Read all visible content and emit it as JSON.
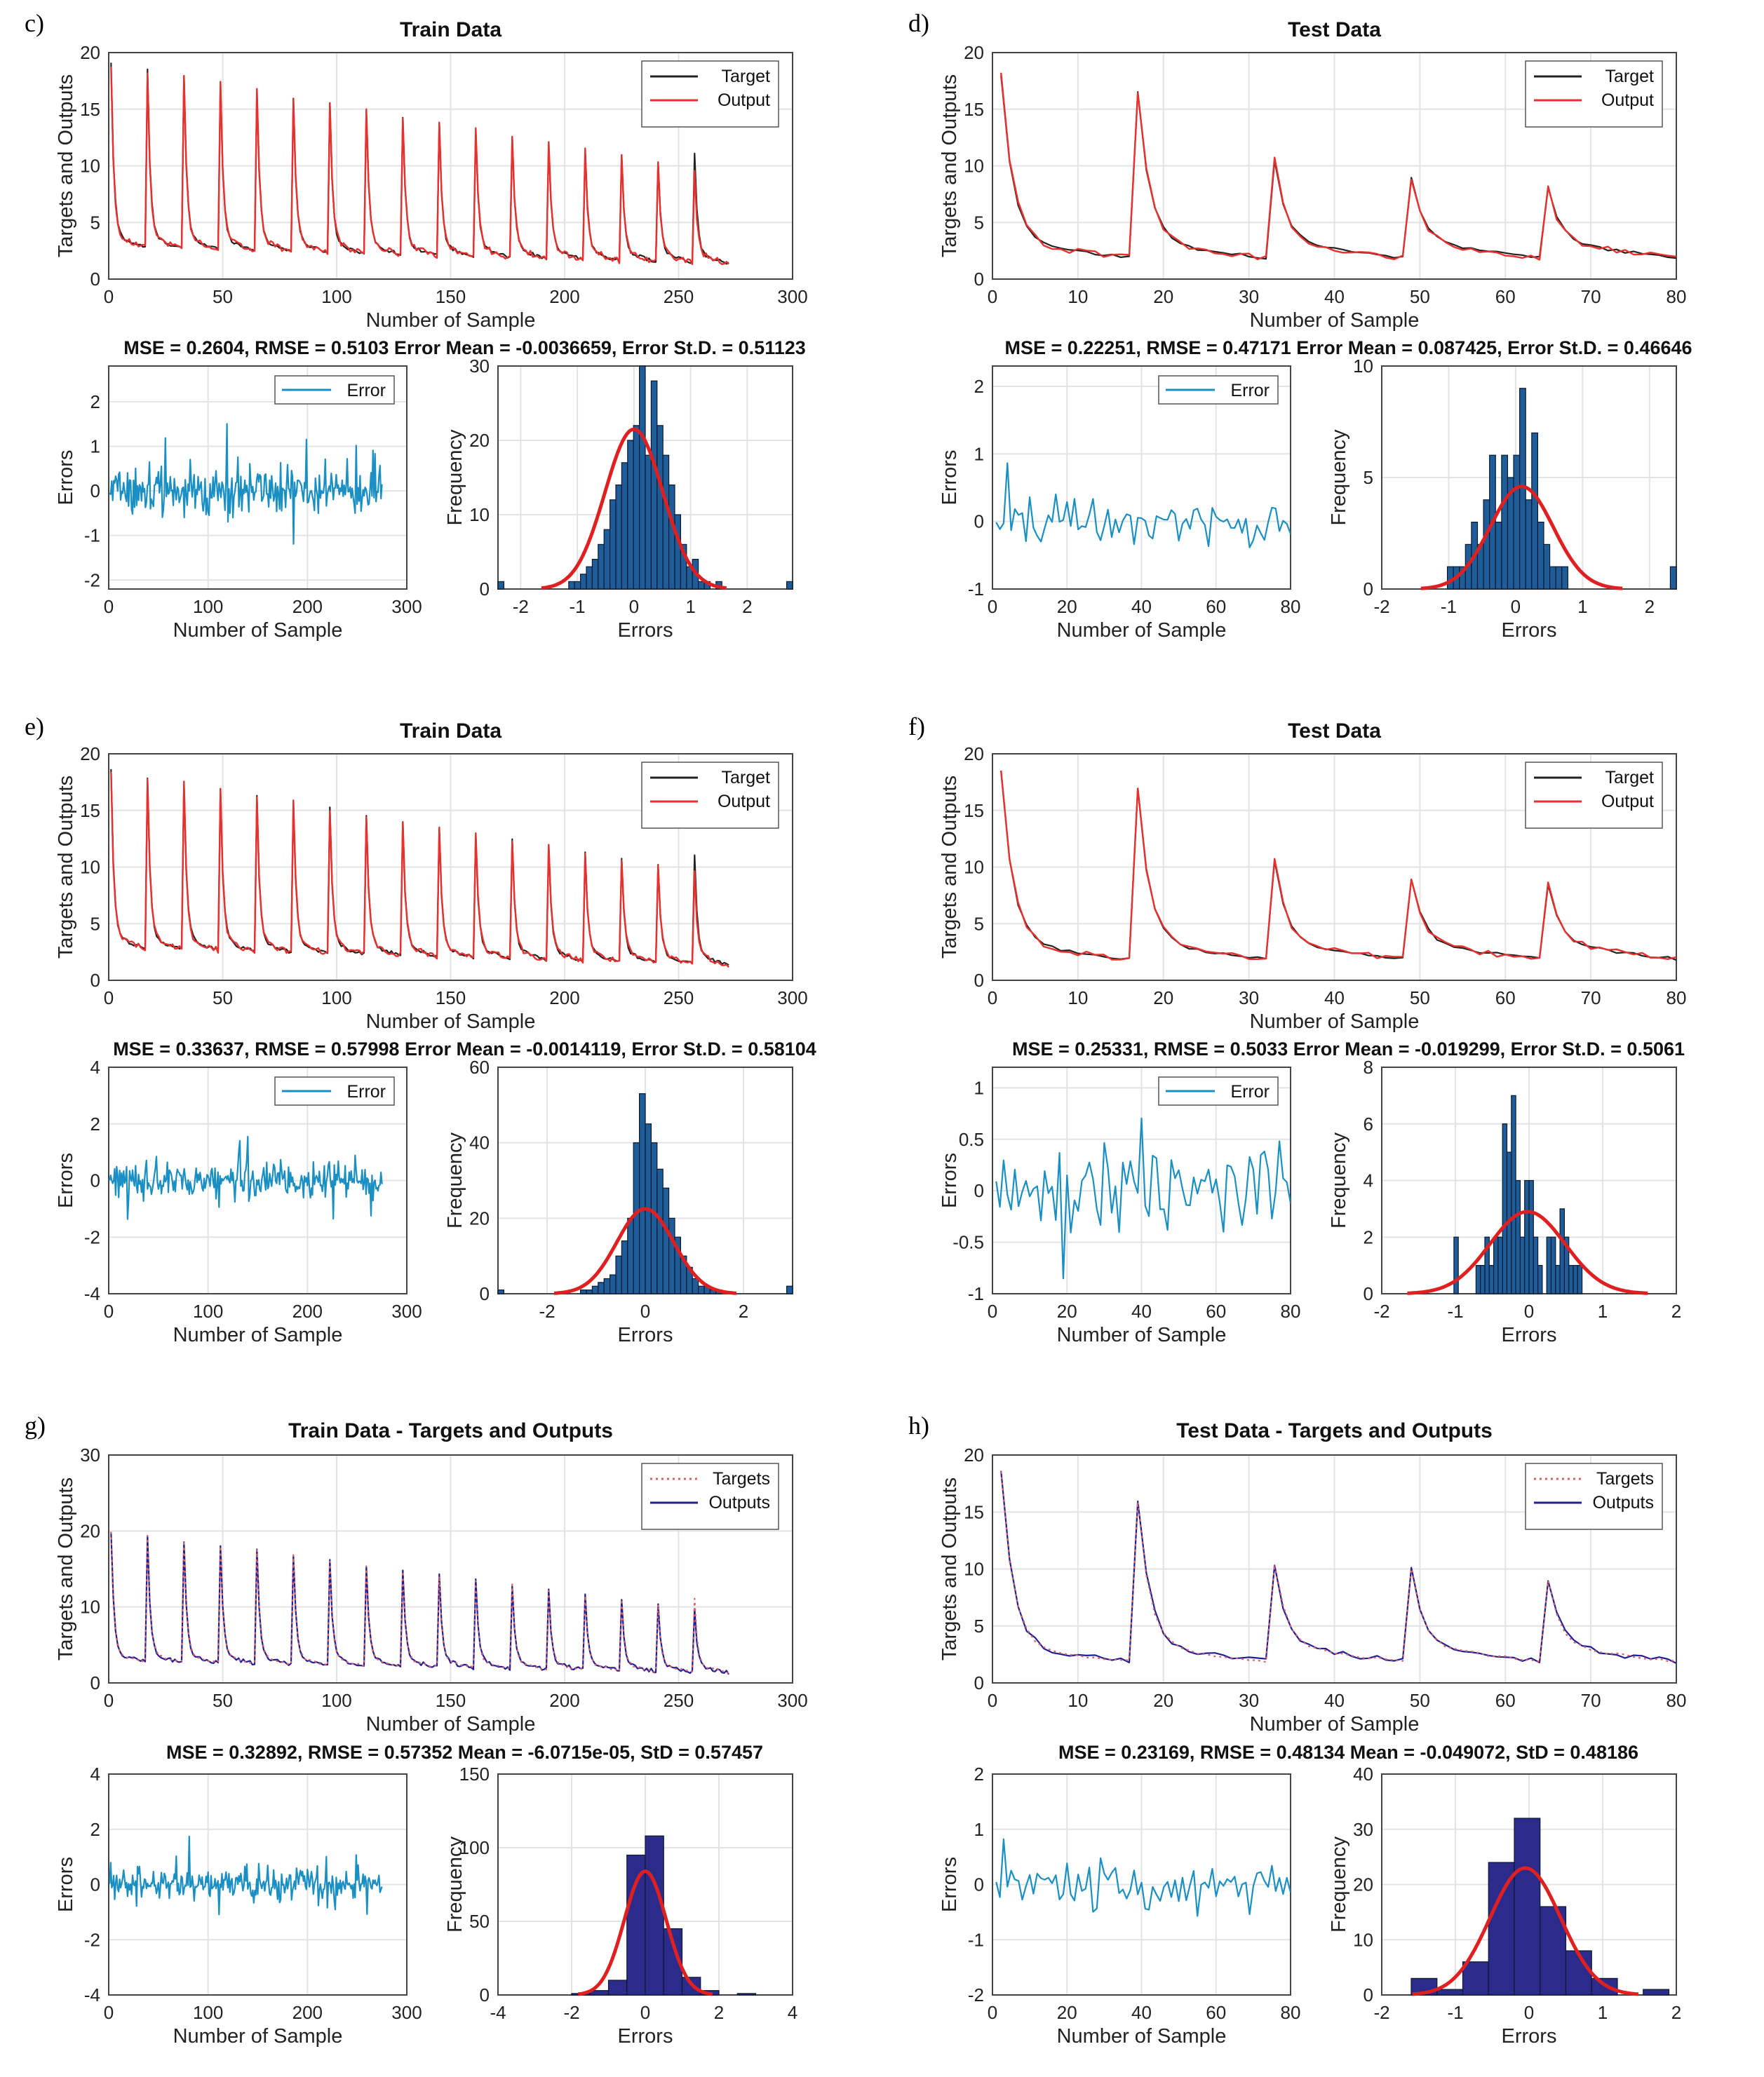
{
  "chart_data": [
    {
      "panel": "c)",
      "title": "Train Data",
      "subtitle": "MSE = 0.2604, RMSE = 0.5103   Error Mean = -0.0036659, Error St.D. = 0.51123",
      "main": {
        "type": "line",
        "xlabel": "Number of Sample",
        "ylabel": "Targets and Outputs",
        "xlim": [
          0,
          300
        ],
        "ylim": [
          0,
          20
        ],
        "xticks": [
          "0",
          "50",
          "100",
          "150",
          "200",
          "250",
          "300"
        ],
        "yticks": [
          "0",
          "5",
          "10",
          "15",
          "20"
        ],
        "legend": [
          "Target",
          "Output"
        ],
        "legend_style": "solid",
        "series_colors": [
          "#222222",
          "#e8312f"
        ],
        "n": 272,
        "period": 16,
        "peak_start": 19,
        "peak_end": 9,
        "base_end": 1.5,
        "spike_at": 257,
        "spike_val": 11
      },
      "errors": {
        "type": "line",
        "xlabel": "Number of Sample",
        "ylabel": "Errors",
        "xlim": [
          0,
          300
        ],
        "ylim": [
          -2.2,
          2.8
        ],
        "xticks": [
          "0",
          "100",
          "200",
          "300"
        ],
        "yticks": [
          "-2",
          "-1",
          "0",
          "1",
          "2"
        ],
        "legend": [
          "Error"
        ],
        "n": 275,
        "amp": 0.5
      },
      "histogram": {
        "type": "bar",
        "xlabel": "Errors",
        "ylabel": "Frequency",
        "xlim": [
          -2.4,
          2.8
        ],
        "ylim": [
          0,
          30
        ],
        "xticks": [
          "-2",
          "-1",
          "0",
          "1",
          "2"
        ],
        "yticks": [
          "0",
          "10",
          "20",
          "30"
        ],
        "bin_edges": [
          -2.4,
          2.8
        ],
        "bins": 50,
        "counts": [
          1,
          0,
          0,
          0,
          0,
          0,
          0,
          0,
          0,
          0,
          0,
          0,
          1,
          1,
          2,
          3,
          4,
          6,
          8,
          12,
          14,
          17,
          20,
          22,
          30,
          18,
          28,
          22,
          18,
          14,
          10,
          6,
          3,
          4,
          1,
          1,
          0,
          1,
          0,
          0,
          0,
          0,
          0,
          0,
          0,
          0,
          0,
          0,
          0,
          1
        ],
        "fit_mean": 0.0,
        "fit_std": 0.51,
        "fit_peak": 21.5,
        "bar_color": "#1f5c9a"
      }
    },
    {
      "panel": "d)",
      "title": "Test Data",
      "subtitle": "MSE = 0.22251, RMSE = 0.47171   Error Mean = 0.087425, Error St.D. = 0.46646",
      "main": {
        "type": "line",
        "xlabel": "Number of Sample",
        "ylabel": "Targets and Outputs",
        "xlim": [
          0,
          80
        ],
        "ylim": [
          0,
          20
        ],
        "xticks": [
          "0",
          "10",
          "20",
          "30",
          "40",
          "50",
          "60",
          "70",
          "80"
        ],
        "yticks": [
          "0",
          "5",
          "10",
          "15",
          "20"
        ],
        "legend": [
          "Target",
          "Output"
        ],
        "legend_style": "solid",
        "series_colors": [
          "#222222",
          "#e8312f"
        ],
        "peaks": [
          [
            1,
            18
          ],
          [
            17,
            16.5
          ],
          [
            33,
            10.5
          ],
          [
            49,
            9
          ],
          [
            65,
            8
          ]
        ],
        "base_end": 0.8,
        "xmax": 80
      },
      "errors": {
        "type": "line",
        "xlabel": "Number of Sample",
        "ylabel": "Errors",
        "xlim": [
          0,
          80
        ],
        "ylim": [
          -1,
          2.3
        ],
        "xticks": [
          "0",
          "20",
          "40",
          "60",
          "80"
        ],
        "yticks": [
          "-1",
          "0",
          "1",
          "2"
        ],
        "legend": [
          "Error"
        ],
        "n": 80,
        "amp": 0.35
      },
      "histogram": {
        "type": "bar",
        "xlabel": "Errors",
        "ylabel": "Frequency",
        "xlim": [
          -2,
          2.4
        ],
        "ylim": [
          0,
          10
        ],
        "xticks": [
          "-2",
          "-1",
          "0",
          "1",
          "2"
        ],
        "yticks": [
          "0",
          "5",
          "10"
        ],
        "bin_edges": [
          -1.2,
          2.4
        ],
        "bins": 40,
        "counts": [
          0,
          0,
          1,
          1,
          1,
          2,
          3,
          2,
          4,
          6,
          3,
          6,
          5,
          6,
          9,
          4,
          7,
          3,
          2,
          1,
          1,
          1,
          0,
          0,
          0,
          0,
          0,
          0,
          0,
          0,
          0,
          0,
          0,
          0,
          0,
          0,
          0,
          0,
          0,
          1
        ],
        "fit_mean": 0.09,
        "fit_std": 0.47,
        "fit_peak": 4.6,
        "bar_color": "#1f5c9a"
      }
    },
    {
      "panel": "e)",
      "title": "Train Data",
      "subtitle": "MSE = 0.33637, RMSE = 0.57998 Error Mean = -0.0014119, Error St.D. = 0.58104",
      "main": {
        "type": "line",
        "xlabel": "Number of Sample",
        "ylabel": "Targets and Outputs",
        "xlim": [
          0,
          300
        ],
        "ylim": [
          0,
          20
        ],
        "xticks": [
          "0",
          "50",
          "100",
          "150",
          "200",
          "250",
          "300"
        ],
        "yticks": [
          "0",
          "5",
          "10",
          "15",
          "20"
        ],
        "legend": [
          "Target",
          "Output"
        ],
        "legend_style": "solid",
        "series_colors": [
          "#222222",
          "#e8312f"
        ],
        "n": 272,
        "period": 16,
        "peak_start": 18.5,
        "peak_end": 9,
        "base_end": 1.5,
        "spike_at": 257,
        "spike_val": 11
      },
      "errors": {
        "type": "line",
        "xlabel": "Number of Sample",
        "ylabel": "Errors",
        "xlim": [
          0,
          300
        ],
        "ylim": [
          -4,
          4
        ],
        "xticks": [
          "0",
          "100",
          "200",
          "300"
        ],
        "yticks": [
          "-4",
          "-2",
          "0",
          "2",
          "4"
        ],
        "legend": [
          "Error"
        ],
        "n": 275,
        "amp": 0.6
      },
      "histogram": {
        "type": "bar",
        "xlabel": "Errors",
        "ylabel": "Frequency",
        "xlim": [
          -3,
          3
        ],
        "ylim": [
          0,
          60
        ],
        "xticks": [
          "-2",
          "0",
          "2"
        ],
        "yticks": [
          "0",
          "20",
          "40",
          "60"
        ],
        "bin_edges": [
          -3,
          3
        ],
        "bins": 50,
        "counts": [
          1,
          0,
          0,
          0,
          0,
          0,
          0,
          0,
          0,
          0,
          0,
          0,
          0,
          0,
          1,
          1,
          2,
          3,
          4,
          5,
          10,
          14,
          20,
          40,
          53,
          45,
          40,
          33,
          28,
          20,
          15,
          10,
          7,
          4,
          2,
          2,
          1,
          1,
          0,
          0,
          0,
          0,
          0,
          0,
          0,
          0,
          0,
          0,
          0,
          2
        ],
        "fit_mean": 0.0,
        "fit_std": 0.58,
        "fit_peak": 22.5,
        "bar_color": "#1f5c9a"
      }
    },
    {
      "panel": "f)",
      "title": "Test Data",
      "subtitle": "MSE = 0.25331, RMSE = 0.5033    Error Mean = -0.019299, Error St.D. = 0.5061",
      "main": {
        "type": "line",
        "xlabel": "Number of Sample",
        "ylabel": "Targets and Outputs",
        "xlim": [
          0,
          80
        ],
        "ylim": [
          0,
          20
        ],
        "xticks": [
          "0",
          "10",
          "20",
          "30",
          "40",
          "50",
          "60",
          "70",
          "80"
        ],
        "yticks": [
          "0",
          "5",
          "10",
          "15",
          "20"
        ],
        "legend": [
          "Target",
          "Output"
        ],
        "legend_style": "solid",
        "series_colors": [
          "#222222",
          "#e8312f"
        ],
        "peaks": [
          [
            1,
            18.5
          ],
          [
            17,
            17
          ],
          [
            33,
            10.5
          ],
          [
            49,
            9
          ],
          [
            65,
            8.5
          ]
        ],
        "base_end": 0.8,
        "xmax": 80
      },
      "errors": {
        "type": "line",
        "xlabel": "Number of Sample",
        "ylabel": "Errors",
        "xlim": [
          0,
          80
        ],
        "ylim": [
          -1,
          1.2
        ],
        "xticks": [
          "0",
          "20",
          "40",
          "60",
          "80"
        ],
        "yticks": [
          "-1",
          "-0.5",
          "0",
          "0.5",
          "1"
        ],
        "legend": [
          "Error"
        ],
        "n": 80,
        "amp": 0.4
      },
      "histogram": {
        "type": "bar",
        "xlabel": "Errors",
        "ylabel": "Frequency",
        "xlim": [
          -2,
          2
        ],
        "ylim": [
          0,
          8
        ],
        "xticks": [
          "-2",
          "-1",
          "0",
          "1",
          "2"
        ],
        "yticks": [
          "0",
          "2",
          "4",
          "6",
          "8"
        ],
        "bin_edges": [
          -1.2,
          1.2
        ],
        "bins": 40,
        "counts": [
          0,
          0,
          0,
          2,
          0,
          0,
          0,
          0,
          1,
          1,
          2,
          1,
          2,
          2,
          6,
          5,
          7,
          4,
          2,
          4,
          4,
          2,
          1,
          0,
          2,
          2,
          1,
          3,
          2,
          1,
          1,
          1,
          0,
          0,
          0,
          0,
          0,
          0,
          0,
          0
        ],
        "fit_mean": -0.02,
        "fit_std": 0.51,
        "fit_peak": 2.9,
        "bar_color": "#1f5c9a"
      }
    },
    {
      "panel": "g)",
      "title": "Train Data - Targets and Outputs",
      "subtitle": "MSE = 0.32892, RMSE = 0.57352   Mean = -6.0715e-05, StD = 0.57457",
      "main": {
        "type": "line",
        "xlabel": "Number of Sample",
        "ylabel": "Targets and Outputs",
        "xlim": [
          0,
          300
        ],
        "ylim": [
          0,
          30
        ],
        "xticks": [
          "0",
          "50",
          "100",
          "150",
          "200",
          "250",
          "300"
        ],
        "yticks": [
          "0",
          "10",
          "20",
          "30"
        ],
        "legend": [
          "Targets",
          "Outputs"
        ],
        "legend_style": "dotted",
        "series_colors": [
          "#e06060",
          "#1f1f9a"
        ],
        "n": 272,
        "period": 16,
        "peak_start": 20,
        "peak_end": 9,
        "base_end": 1.5,
        "spike_at": 257,
        "spike_val": 11
      },
      "errors": {
        "type": "line",
        "xlabel": "Number of Sample",
        "ylabel": "Errors",
        "xlim": [
          0,
          300
        ],
        "ylim": [
          -4,
          4
        ],
        "xticks": [
          "0",
          "100",
          "200",
          "300"
        ],
        "yticks": [
          "-4",
          "-2",
          "0",
          "2",
          "4"
        ],
        "legend": [],
        "n": 275,
        "amp": 0.55
      },
      "histogram": {
        "type": "bar",
        "xlabel": "Errors",
        "ylabel": "Frequency",
        "xlim": [
          -4,
          4
        ],
        "ylim": [
          0,
          150
        ],
        "xticks": [
          "-4",
          "-2",
          "0",
          "2",
          "4"
        ],
        "yticks": [
          "0",
          "50",
          "100",
          "150"
        ],
        "bin_edges": [
          -2,
          3
        ],
        "bins": 10,
        "counts": [
          1,
          3,
          10,
          95,
          108,
          45,
          12,
          3,
          0,
          1
        ],
        "fit_mean": 0.0,
        "fit_std": 0.57,
        "fit_peak": 84,
        "bar_color": "#2b2b8c"
      }
    },
    {
      "panel": "h)",
      "title": "Test Data - Targets and Outputs",
      "subtitle": "MSE = 0.23169, RMSE = 0.48134   Mean = -0.049072, StD = 0.48186",
      "main": {
        "type": "line",
        "xlabel": "Number of Sample",
        "ylabel": "Targets and Outputs",
        "xlim": [
          0,
          80
        ],
        "ylim": [
          0,
          20
        ],
        "xticks": [
          "0",
          "10",
          "20",
          "30",
          "40",
          "50",
          "60",
          "70",
          "80"
        ],
        "yticks": [
          "0",
          "5",
          "10",
          "15",
          "20"
        ],
        "legend": [
          "Targets",
          "Outputs"
        ],
        "legend_style": "dotted",
        "series_colors": [
          "#e06060",
          "#1f1f9a"
        ],
        "peaks": [
          [
            1,
            18.5
          ],
          [
            17,
            16
          ],
          [
            33,
            10.5
          ],
          [
            49,
            10
          ],
          [
            65,
            9
          ]
        ],
        "base_end": 1.0,
        "xmax": 80
      },
      "errors": {
        "type": "line",
        "xlabel": "Number of Sample",
        "ylabel": "Errors",
        "xlim": [
          0,
          80
        ],
        "ylim": [
          -2,
          2
        ],
        "xticks": [
          "0",
          "20",
          "40",
          "60",
          "80"
        ],
        "yticks": [
          "-2",
          "-1",
          "0",
          "1",
          "2"
        ],
        "legend": [],
        "n": 80,
        "amp": 0.4
      },
      "histogram": {
        "type": "bar",
        "xlabel": "Errors",
        "ylabel": "Frequency",
        "xlim": [
          -2,
          2
        ],
        "ylim": [
          0,
          40
        ],
        "xticks": [
          "-2",
          "-1",
          "0",
          "1",
          "2"
        ],
        "yticks": [
          "0",
          "10",
          "20",
          "30",
          "40"
        ],
        "bin_edges": [
          -1.6,
          1.9
        ],
        "bins": 10,
        "counts": [
          3,
          1,
          6,
          24,
          32,
          16,
          8,
          3,
          0,
          1
        ],
        "fit_mean": -0.05,
        "fit_std": 0.48,
        "fit_peak": 23,
        "bar_color": "#2b2b8c"
      }
    }
  ]
}
